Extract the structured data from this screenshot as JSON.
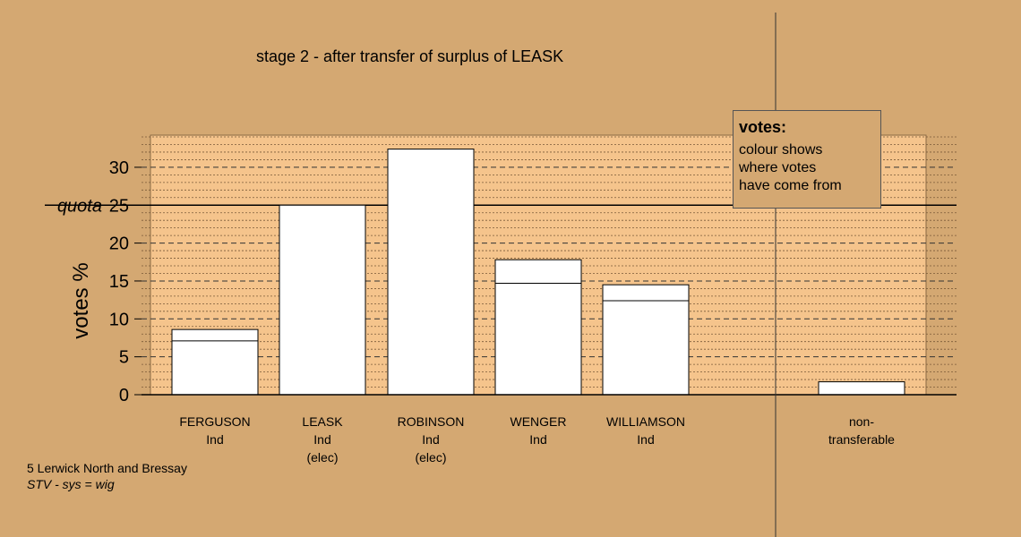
{
  "chart_data": {
    "type": "bar",
    "title": "stage 2 - after transfer of surplus of LEASK",
    "ylabel": "votes %",
    "ylim": [
      0,
      34
    ],
    "yticks": [
      0,
      5,
      10,
      15,
      20,
      25,
      30
    ],
    "quota": {
      "label": "quota",
      "value": 25
    },
    "categories": [
      {
        "lines": [
          "FERGUSON",
          "Ind"
        ]
      },
      {
        "lines": [
          "LEASK",
          "Ind",
          "(elec)"
        ]
      },
      {
        "lines": [
          "ROBINSON",
          "Ind",
          "(elec)"
        ]
      },
      {
        "lines": [
          "WENGER",
          "Ind"
        ]
      },
      {
        "lines": [
          "WILLIAMSON",
          "Ind"
        ]
      },
      {
        "lines": [
          "non-",
          "transferable"
        ]
      }
    ],
    "series": [
      {
        "values": [
          7.1,
          25.0,
          32.4,
          14.7,
          12.4,
          0
        ]
      },
      {
        "values": [
          1.5,
          0,
          0,
          3.1,
          2.1,
          1.7
        ]
      }
    ],
    "totals": [
      8.6,
      25.0,
      32.4,
      17.8,
      14.5,
      1.7
    ],
    "grid": true
  },
  "legend": {
    "title": "votes:",
    "lines": [
      "colour shows",
      "where votes",
      "have come from"
    ]
  },
  "footer": {
    "ward": "5 Lerwick North and Bressay",
    "system": "STV - sys = wig"
  },
  "colors": {
    "background": "#d4a872",
    "plot_area": "#f5c48c",
    "bar_fill": "#ffffff",
    "axis": "#000000"
  }
}
